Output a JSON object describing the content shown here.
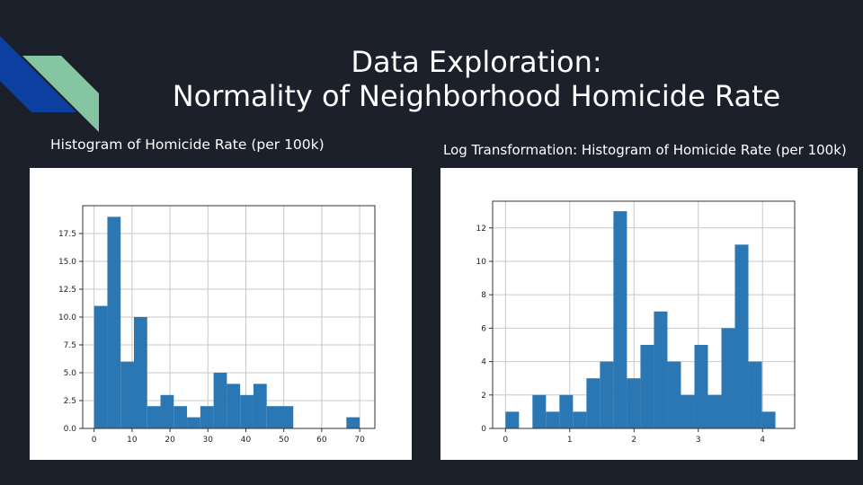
{
  "slide": {
    "title_line1": "Data Exploration:",
    "title_line2": "Normality of Neighborhood Homicide Rate",
    "left_caption": "Histogram of Homicide Rate (per 100k)",
    "right_caption": "Log Transformation: Histogram of Homicide Rate (per 100k)",
    "background_color": "#1b202b",
    "decor_colors": [
      "#0b3fa0",
      "#86c5a2",
      "#1d5fc7"
    ]
  },
  "chart_data": [
    {
      "type": "bar",
      "title": "",
      "xlabel": "",
      "ylabel": "",
      "bar_color": "#2a77b4",
      "grid": true,
      "xlim": [
        -3,
        74
      ],
      "ylim": [
        0,
        20
      ],
      "xticks": [
        0,
        10,
        20,
        30,
        40,
        50,
        60,
        70
      ],
      "xtick_labels": [
        "0",
        "10",
        "20",
        "30",
        "40",
        "50",
        "60",
        "70"
      ],
      "yticks": [
        0,
        2.5,
        5,
        7.5,
        10,
        12.5,
        15,
        17.5
      ],
      "ytick_labels": [
        "0.0",
        "2.5",
        "5.0",
        "7.5",
        "10.0",
        "12.5",
        "15.0",
        "17.5"
      ],
      "bin_width": 3.5,
      "bin_starts": [
        0,
        3.5,
        7,
        10.5,
        14,
        17.5,
        21,
        24.5,
        28,
        31.5,
        35,
        38.5,
        42,
        45.5,
        49,
        52.5,
        56,
        59.5,
        63,
        66.5
      ],
      "values": [
        11,
        19,
        6,
        10,
        2,
        3,
        2,
        1,
        2,
        5,
        4,
        3,
        4,
        2,
        2,
        0,
        0,
        0,
        0,
        1
      ]
    },
    {
      "type": "bar",
      "title": "",
      "xlabel": "",
      "ylabel": "",
      "bar_color": "#2a77b4",
      "grid": true,
      "xlim": [
        -0.2,
        4.5
      ],
      "ylim": [
        0,
        13.6
      ],
      "xticks": [
        0,
        1,
        2,
        3,
        4
      ],
      "xtick_labels": [
        "0",
        "1",
        "2",
        "3",
        "4"
      ],
      "yticks": [
        0,
        2,
        4,
        6,
        8,
        10,
        12
      ],
      "ytick_labels": [
        "0",
        "2",
        "4",
        "6",
        "8",
        "10",
        "12"
      ],
      "bin_width": 0.21,
      "bin_starts": [
        0,
        0.21,
        0.42,
        0.63,
        0.84,
        1.05,
        1.26,
        1.47,
        1.68,
        1.89,
        2.1,
        2.31,
        2.52,
        2.73,
        2.94,
        3.15,
        3.36,
        3.57,
        3.78,
        3.99
      ],
      "values": [
        1,
        0,
        2,
        1,
        2,
        1,
        3,
        4,
        13,
        3,
        5,
        7,
        4,
        2,
        5,
        2,
        6,
        11,
        4,
        1
      ]
    }
  ]
}
